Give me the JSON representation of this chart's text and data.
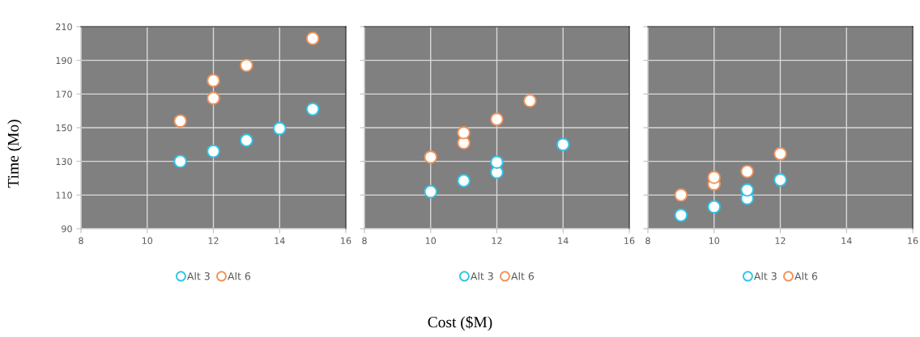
{
  "chart_data": [
    {
      "type": "scatter",
      "ylabel": "Time (Mo)",
      "xlim": [
        8,
        16
      ],
      "xticks": [
        8,
        10,
        12,
        14,
        16
      ],
      "ylim": [
        90,
        210
      ],
      "yticks": [
        90,
        110,
        130,
        150,
        170,
        190,
        210
      ],
      "grid": true,
      "legend": "bottom",
      "marker": "circle",
      "series": [
        {
          "name": "Alt 3",
          "color": "#2ec4e8",
          "x": [
            11,
            12,
            13,
            14,
            15
          ],
          "values": [
            130,
            136,
            142.5,
            149.5,
            161
          ]
        },
        {
          "name": "Alt 6",
          "color": "#f0925a",
          "x": [
            11,
            12,
            12,
            13,
            15
          ],
          "values": [
            154,
            167.5,
            178,
            187,
            203
          ]
        }
      ]
    },
    {
      "type": "scatter",
      "xlabel": "Cost ($M)",
      "xlim": [
        8,
        16
      ],
      "xticks": [
        8,
        10,
        12,
        14,
        16
      ],
      "ylim": [
        90,
        210
      ],
      "yticks": [
        90,
        110,
        130,
        150,
        170,
        190,
        210
      ],
      "tick_labels": "x",
      "grid": true,
      "legend": "bottom",
      "marker": "circle",
      "series": [
        {
          "name": "Alt 3",
          "color": "#2ec4e8",
          "x": [
            10,
            11,
            12,
            12,
            14
          ],
          "values": [
            112,
            118.5,
            123.5,
            129.5,
            140
          ]
        },
        {
          "name": "Alt 6",
          "color": "#f0925a",
          "x": [
            10,
            11,
            11,
            12,
            13
          ],
          "values": [
            132.5,
            141,
            147,
            155,
            166
          ]
        }
      ]
    },
    {
      "type": "scatter",
      "xlim": [
        8,
        16
      ],
      "xticks": [
        8,
        10,
        12,
        14,
        16
      ],
      "ylim": [
        90,
        210
      ],
      "yticks": [
        90,
        110,
        130,
        150,
        170,
        190,
        210
      ],
      "tick_labels": "x",
      "grid": true,
      "legend": "bottom",
      "marker": "circle",
      "series": [
        {
          "name": "Alt 3",
          "color": "#2ec4e8",
          "x": [
            9,
            10,
            11,
            11,
            12
          ],
          "values": [
            98,
            103,
            108,
            113,
            119
          ]
        },
        {
          "name": "Alt 6",
          "color": "#f0925a",
          "x": [
            9,
            10,
            10,
            11,
            12
          ],
          "values": [
            110,
            116.5,
            120.5,
            124,
            134.5
          ]
        }
      ]
    }
  ]
}
